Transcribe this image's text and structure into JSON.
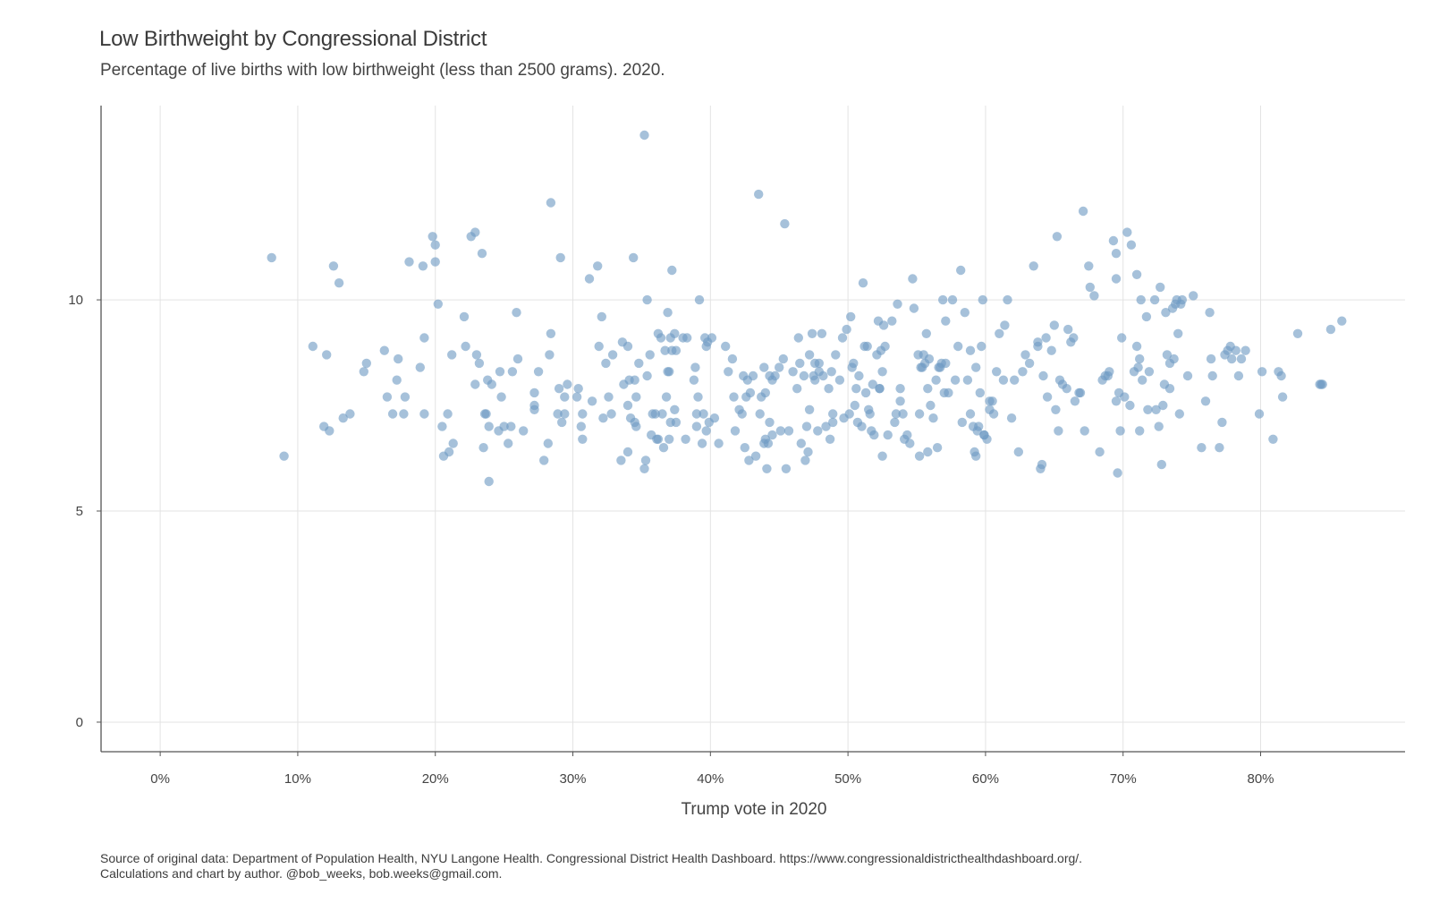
{
  "header": {
    "title": "Low Birthweight by Congressional District",
    "subtitle": "Percentage of live births with low birthweight (less than 2500 grams). 2020."
  },
  "footer": {
    "source_line": "Source of original data: Department of Population Health, NYU Langone Health. Congressional District Health Dashboard. https://www.congressionaldistricthealthdashboard.org/.",
    "credit_line": "Calculations and chart by author. @bob_weeks, bob.weeks@gmail.com."
  },
  "chart_data": {
    "type": "scatter",
    "title": "Low Birthweight by Congressional District",
    "subtitle": "Percentage of live births with low birthweight (less than 2500 grams). 2020.",
    "xlabel": "Trump vote in 2020",
    "ylabel": "",
    "x_ticks": [
      "0%",
      "10%",
      "20%",
      "30%",
      "40%",
      "50%",
      "60%",
      "70%",
      "80%"
    ],
    "x_tick_values": [
      0,
      10,
      20,
      30,
      40,
      50,
      60,
      70,
      80
    ],
    "y_ticks": [
      "0",
      "5",
      "10"
    ],
    "y_tick_values": [
      0,
      5,
      10
    ],
    "xlim": [
      -4.3,
      90.5
    ],
    "ylim": [
      -0.7,
      14.6
    ],
    "grid": true,
    "point_color": "#6f9bc4",
    "points": [
      [
        8.1,
        11.0
      ],
      [
        9.0,
        6.3
      ],
      [
        11.1,
        8.9
      ],
      [
        11.9,
        7.0
      ],
      [
        12.1,
        8.7
      ],
      [
        12.3,
        6.9
      ],
      [
        12.6,
        10.8
      ],
      [
        13.0,
        10.4
      ],
      [
        13.3,
        7.2
      ],
      [
        13.8,
        7.3
      ],
      [
        14.8,
        8.3
      ],
      [
        15.0,
        8.5
      ],
      [
        16.3,
        8.8
      ],
      [
        16.5,
        7.7
      ],
      [
        16.9,
        7.3
      ],
      [
        17.2,
        8.1
      ],
      [
        17.3,
        8.6
      ],
      [
        17.7,
        7.3
      ],
      [
        17.8,
        7.7
      ],
      [
        18.1,
        10.9
      ],
      [
        18.9,
        8.4
      ],
      [
        19.1,
        10.8
      ],
      [
        19.2,
        7.3
      ],
      [
        19.2,
        9.1
      ],
      [
        19.8,
        11.5
      ],
      [
        20.0,
        11.3
      ],
      [
        20.0,
        10.9
      ],
      [
        20.2,
        9.9
      ],
      [
        20.5,
        7.0
      ],
      [
        20.6,
        6.3
      ],
      [
        20.9,
        7.3
      ],
      [
        21.0,
        6.4
      ],
      [
        21.2,
        8.7
      ],
      [
        21.3,
        6.6
      ],
      [
        22.1,
        9.6
      ],
      [
        22.2,
        8.9
      ],
      [
        22.6,
        11.5
      ],
      [
        22.9,
        11.6
      ],
      [
        22.9,
        8.0
      ],
      [
        23.0,
        8.7
      ],
      [
        23.2,
        8.5
      ],
      [
        23.4,
        11.1
      ],
      [
        23.5,
        6.5
      ],
      [
        23.6,
        7.3
      ],
      [
        23.7,
        7.3
      ],
      [
        23.8,
        8.1
      ],
      [
        23.9,
        5.7
      ],
      [
        23.9,
        7.0
      ],
      [
        24.1,
        8.0
      ],
      [
        24.6,
        6.9
      ],
      [
        24.7,
        8.3
      ],
      [
        24.8,
        7.7
      ],
      [
        25.0,
        7.0
      ],
      [
        25.3,
        6.6
      ],
      [
        25.5,
        7.0
      ],
      [
        25.6,
        8.3
      ],
      [
        25.9,
        9.7
      ],
      [
        26.0,
        8.6
      ],
      [
        26.4,
        6.9
      ],
      [
        27.2,
        7.8
      ],
      [
        27.2,
        7.5
      ],
      [
        27.2,
        7.4
      ],
      [
        27.5,
        8.3
      ],
      [
        27.9,
        6.2
      ],
      [
        28.2,
        6.6
      ],
      [
        28.3,
        8.7
      ],
      [
        28.4,
        9.2
      ],
      [
        28.4,
        12.3
      ],
      [
        28.9,
        7.3
      ],
      [
        29.0,
        7.9
      ],
      [
        29.1,
        11.0
      ],
      [
        29.2,
        7.1
      ],
      [
        29.4,
        7.3
      ],
      [
        29.4,
        7.7
      ],
      [
        29.6,
        8.0
      ],
      [
        30.3,
        7.7
      ],
      [
        30.4,
        7.9
      ],
      [
        30.6,
        7.0
      ],
      [
        30.7,
        6.7
      ],
      [
        30.7,
        7.3
      ],
      [
        31.2,
        10.5
      ],
      [
        31.4,
        7.6
      ],
      [
        31.8,
        10.8
      ],
      [
        31.9,
        8.9
      ],
      [
        32.1,
        9.6
      ],
      [
        32.2,
        7.2
      ],
      [
        32.4,
        8.5
      ],
      [
        32.6,
        7.7
      ],
      [
        32.8,
        7.3
      ],
      [
        32.9,
        8.7
      ],
      [
        33.5,
        6.2
      ],
      [
        33.6,
        9.0
      ],
      [
        33.7,
        8.0
      ],
      [
        34.0,
        7.5
      ],
      [
        34.0,
        8.9
      ],
      [
        34.0,
        6.4
      ],
      [
        34.1,
        8.1
      ],
      [
        34.2,
        7.2
      ],
      [
        34.4,
        11.0
      ],
      [
        34.5,
        7.1
      ],
      [
        34.5,
        8.1
      ],
      [
        34.6,
        7.0
      ],
      [
        34.6,
        7.7
      ],
      [
        34.8,
        8.5
      ],
      [
        35.2,
        6.0
      ],
      [
        35.2,
        13.9
      ],
      [
        35.3,
        6.2
      ],
      [
        35.4,
        10.0
      ],
      [
        35.4,
        8.2
      ],
      [
        35.6,
        8.7
      ],
      [
        35.7,
        6.8
      ],
      [
        35.8,
        7.3
      ],
      [
        36.0,
        7.3
      ],
      [
        36.1,
        6.7
      ],
      [
        36.2,
        9.2
      ],
      [
        36.2,
        6.7
      ],
      [
        36.4,
        9.1
      ],
      [
        36.5,
        7.3
      ],
      [
        36.6,
        6.5
      ],
      [
        36.7,
        8.8
      ],
      [
        36.8,
        7.7
      ],
      [
        36.9,
        9.7
      ],
      [
        36.9,
        8.3
      ],
      [
        37.0,
        8.3
      ],
      [
        37.0,
        6.7
      ],
      [
        37.1,
        9.1
      ],
      [
        37.1,
        7.1
      ],
      [
        37.2,
        10.7
      ],
      [
        37.2,
        8.8
      ],
      [
        37.4,
        9.2
      ],
      [
        37.4,
        7.4
      ],
      [
        37.5,
        7.1
      ],
      [
        37.5,
        8.8
      ],
      [
        38.0,
        9.1
      ],
      [
        38.2,
        6.7
      ],
      [
        38.3,
        9.1
      ],
      [
        38.8,
        8.1
      ],
      [
        38.9,
        8.4
      ],
      [
        39.0,
        7.0
      ],
      [
        39.0,
        7.3
      ],
      [
        39.1,
        7.7
      ],
      [
        39.2,
        10.0
      ],
      [
        39.4,
        6.6
      ],
      [
        39.5,
        7.3
      ],
      [
        39.6,
        9.1
      ],
      [
        39.7,
        6.9
      ],
      [
        39.7,
        8.9
      ],
      [
        39.8,
        9.0
      ],
      [
        39.9,
        7.1
      ],
      [
        40.1,
        9.1
      ],
      [
        40.3,
        7.2
      ],
      [
        40.6,
        6.6
      ],
      [
        41.1,
        8.9
      ],
      [
        41.3,
        8.3
      ],
      [
        41.6,
        8.6
      ],
      [
        41.7,
        7.7
      ],
      [
        41.8,
        6.9
      ],
      [
        42.1,
        7.4
      ],
      [
        42.3,
        7.3
      ],
      [
        42.4,
        8.2
      ],
      [
        42.5,
        6.5
      ],
      [
        42.6,
        7.7
      ],
      [
        42.7,
        8.1
      ],
      [
        42.8,
        6.2
      ],
      [
        42.9,
        7.8
      ],
      [
        43.1,
        8.2
      ],
      [
        43.3,
        6.3
      ],
      [
        43.5,
        12.5
      ],
      [
        43.6,
        7.3
      ],
      [
        43.7,
        7.7
      ],
      [
        43.9,
        6.6
      ],
      [
        43.9,
        8.4
      ],
      [
        44.0,
        7.8
      ],
      [
        44.0,
        6.7
      ],
      [
        44.1,
        6.0
      ],
      [
        44.2,
        6.6
      ],
      [
        44.3,
        7.1
      ],
      [
        44.3,
        8.2
      ],
      [
        44.5,
        8.1
      ],
      [
        44.5,
        6.8
      ],
      [
        44.7,
        8.2
      ],
      [
        45.0,
        8.4
      ],
      [
        45.1,
        6.9
      ],
      [
        45.3,
        8.6
      ],
      [
        45.4,
        11.8
      ],
      [
        45.5,
        6.0
      ],
      [
        45.7,
        6.9
      ],
      [
        46.0,
        8.3
      ],
      [
        46.3,
        7.9
      ],
      [
        46.4,
        9.1
      ],
      [
        46.5,
        8.5
      ],
      [
        46.6,
        6.6
      ],
      [
        46.8,
        8.2
      ],
      [
        46.9,
        6.2
      ],
      [
        47.0,
        7.0
      ],
      [
        47.1,
        6.4
      ],
      [
        47.2,
        8.7
      ],
      [
        47.2,
        7.4
      ],
      [
        47.4,
        9.2
      ],
      [
        47.5,
        8.2
      ],
      [
        47.6,
        8.5
      ],
      [
        47.6,
        8.1
      ],
      [
        47.8,
        6.9
      ],
      [
        47.9,
        8.5
      ],
      [
        47.9,
        8.3
      ],
      [
        48.1,
        9.2
      ],
      [
        48.2,
        8.2
      ],
      [
        48.4,
        7.0
      ],
      [
        48.6,
        7.9
      ],
      [
        48.7,
        6.7
      ],
      [
        48.8,
        8.3
      ],
      [
        48.9,
        7.1
      ],
      [
        48.9,
        7.3
      ],
      [
        49.1,
        8.7
      ],
      [
        49.4,
        8.1
      ],
      [
        49.6,
        9.1
      ],
      [
        49.7,
        7.2
      ],
      [
        49.9,
        9.3
      ],
      [
        50.1,
        7.3
      ],
      [
        50.2,
        9.6
      ],
      [
        50.3,
        8.4
      ],
      [
        50.4,
        8.5
      ],
      [
        50.5,
        7.5
      ],
      [
        50.6,
        7.9
      ],
      [
        50.7,
        7.1
      ],
      [
        50.8,
        8.2
      ],
      [
        51.0,
        7.0
      ],
      [
        51.1,
        10.4
      ],
      [
        51.2,
        8.9
      ],
      [
        51.3,
        7.8
      ],
      [
        51.4,
        8.9
      ],
      [
        51.5,
        7.4
      ],
      [
        51.6,
        7.3
      ],
      [
        51.7,
        6.9
      ],
      [
        51.8,
        8.0
      ],
      [
        51.9,
        6.8
      ],
      [
        52.1,
        8.7
      ],
      [
        52.2,
        9.5
      ],
      [
        52.3,
        7.9
      ],
      [
        52.3,
        7.9
      ],
      [
        52.4,
        8.8
      ],
      [
        52.5,
        6.3
      ],
      [
        52.5,
        8.3
      ],
      [
        52.6,
        9.4
      ],
      [
        52.7,
        8.9
      ],
      [
        52.9,
        6.8
      ],
      [
        53.2,
        9.5
      ],
      [
        53.4,
        7.1
      ],
      [
        53.5,
        7.3
      ],
      [
        53.6,
        9.9
      ],
      [
        53.8,
        7.6
      ],
      [
        53.8,
        7.9
      ],
      [
        54.0,
        7.3
      ],
      [
        54.1,
        6.7
      ],
      [
        54.3,
        6.8
      ],
      [
        54.5,
        6.6
      ],
      [
        54.7,
        10.5
      ],
      [
        54.8,
        9.8
      ],
      [
        55.1,
        8.7
      ],
      [
        55.2,
        7.3
      ],
      [
        55.2,
        6.3
      ],
      [
        55.3,
        8.4
      ],
      [
        55.4,
        8.4
      ],
      [
        55.5,
        8.7
      ],
      [
        55.6,
        8.5
      ],
      [
        55.7,
        9.2
      ],
      [
        55.8,
        7.9
      ],
      [
        55.8,
        6.4
      ],
      [
        55.9,
        8.6
      ],
      [
        56.0,
        7.5
      ],
      [
        56.2,
        7.2
      ],
      [
        56.4,
        8.1
      ],
      [
        56.5,
        6.5
      ],
      [
        56.6,
        8.4
      ],
      [
        56.7,
        8.4
      ],
      [
        56.8,
        8.5
      ],
      [
        56.9,
        10.0
      ],
      [
        57.0,
        7.8
      ],
      [
        57.1,
        8.5
      ],
      [
        57.3,
        7.8
      ],
      [
        57.6,
        10.0
      ],
      [
        57.8,
        8.1
      ],
      [
        58.0,
        8.9
      ],
      [
        58.2,
        10.7
      ],
      [
        58.3,
        7.1
      ],
      [
        58.5,
        9.7
      ],
      [
        58.7,
        8.1
      ],
      [
        58.9,
        7.3
      ],
      [
        59.1,
        7.0
      ],
      [
        59.2,
        6.4
      ],
      [
        59.3,
        8.4
      ],
      [
        59.3,
        6.3
      ],
      [
        59.4,
        6.9
      ],
      [
        59.5,
        7.0
      ],
      [
        59.6,
        7.8
      ],
      [
        59.7,
        8.9
      ],
      [
        59.9,
        6.8
      ],
      [
        59.9,
        6.8
      ],
      [
        60.1,
        6.7
      ],
      [
        60.3,
        7.6
      ],
      [
        60.3,
        7.4
      ],
      [
        60.5,
        7.6
      ],
      [
        60.6,
        7.3
      ],
      [
        61.0,
        9.2
      ],
      [
        61.3,
        8.1
      ],
      [
        61.6,
        10.0
      ],
      [
        61.9,
        7.2
      ],
      [
        62.1,
        8.1
      ],
      [
        62.4,
        6.4
      ],
      [
        62.7,
        8.3
      ],
      [
        62.9,
        8.7
      ],
      [
        63.2,
        8.5
      ],
      [
        63.5,
        10.8
      ],
      [
        63.8,
        8.9
      ],
      [
        64.0,
        6.0
      ],
      [
        64.1,
        6.1
      ],
      [
        64.2,
        8.2
      ],
      [
        64.4,
        9.1
      ],
      [
        64.5,
        7.7
      ],
      [
        64.8,
        8.8
      ],
      [
        65.0,
        9.4
      ],
      [
        65.1,
        7.4
      ],
      [
        65.2,
        11.5
      ],
      [
        65.3,
        6.9
      ],
      [
        65.4,
        8.1
      ],
      [
        65.6,
        8.0
      ],
      [
        65.9,
        7.9
      ],
      [
        66.0,
        9.3
      ],
      [
        66.2,
        9.0
      ],
      [
        66.4,
        9.1
      ],
      [
        66.5,
        7.6
      ],
      [
        66.8,
        7.8
      ],
      [
        66.9,
        7.8
      ],
      [
        67.1,
        12.1
      ],
      [
        67.2,
        6.9
      ],
      [
        67.5,
        10.8
      ],
      [
        67.6,
        10.3
      ],
      [
        67.9,
        10.1
      ],
      [
        68.3,
        6.4
      ],
      [
        68.5,
        8.1
      ],
      [
        68.7,
        8.2
      ],
      [
        68.9,
        8.2
      ],
      [
        69.0,
        8.3
      ],
      [
        69.3,
        11.4
      ],
      [
        69.5,
        10.5
      ],
      [
        69.5,
        7.6
      ],
      [
        69.5,
        11.1
      ],
      [
        69.6,
        5.9
      ],
      [
        69.7,
        7.8
      ],
      [
        69.8,
        6.9
      ],
      [
        69.9,
        9.1
      ],
      [
        70.1,
        7.7
      ],
      [
        70.3,
        11.6
      ],
      [
        70.5,
        7.5
      ],
      [
        70.6,
        11.3
      ],
      [
        70.8,
        8.3
      ],
      [
        71.0,
        10.6
      ],
      [
        71.0,
        8.9
      ],
      [
        71.1,
        8.4
      ],
      [
        71.2,
        8.6
      ],
      [
        71.2,
        6.9
      ],
      [
        71.3,
        10.0
      ],
      [
        71.4,
        8.1
      ],
      [
        71.7,
        9.6
      ],
      [
        71.8,
        7.4
      ],
      [
        71.9,
        8.3
      ],
      [
        72.3,
        10.0
      ],
      [
        72.4,
        7.4
      ],
      [
        72.6,
        7.0
      ],
      [
        72.7,
        10.3
      ],
      [
        72.8,
        6.1
      ],
      [
        72.9,
        7.5
      ],
      [
        73.0,
        8.0
      ],
      [
        73.1,
        9.7
      ],
      [
        73.2,
        8.7
      ],
      [
        73.4,
        8.5
      ],
      [
        73.4,
        7.9
      ],
      [
        73.6,
        9.8
      ],
      [
        73.7,
        8.6
      ],
      [
        73.8,
        9.9
      ],
      [
        73.9,
        10.0
      ],
      [
        74.0,
        9.2
      ],
      [
        74.1,
        7.3
      ],
      [
        74.2,
        9.9
      ],
      [
        74.3,
        10.0
      ],
      [
        74.7,
        8.2
      ],
      [
        75.1,
        10.1
      ],
      [
        75.7,
        6.5
      ],
      [
        76.0,
        7.6
      ],
      [
        76.3,
        9.7
      ],
      [
        76.4,
        8.6
      ],
      [
        76.5,
        8.2
      ],
      [
        77.0,
        6.5
      ],
      [
        77.2,
        7.1
      ],
      [
        77.4,
        8.7
      ],
      [
        77.6,
        8.8
      ],
      [
        77.8,
        8.9
      ],
      [
        77.9,
        8.6
      ],
      [
        78.2,
        8.8
      ],
      [
        78.4,
        8.2
      ],
      [
        78.6,
        8.6
      ],
      [
        78.9,
        8.8
      ],
      [
        79.9,
        7.3
      ],
      [
        80.1,
        8.3
      ],
      [
        80.9,
        6.7
      ],
      [
        81.3,
        8.3
      ],
      [
        81.5,
        8.2
      ],
      [
        81.6,
        7.7
      ],
      [
        82.7,
        9.2
      ],
      [
        84.3,
        8.0
      ],
      [
        84.4,
        8.0
      ],
      [
        84.5,
        8.0
      ],
      [
        85.1,
        9.3
      ],
      [
        85.9,
        9.5
      ],
      [
        59.8,
        10.0
      ],
      [
        61.4,
        9.4
      ],
      [
        63.8,
        9.0
      ],
      [
        57.1,
        9.5
      ],
      [
        58.9,
        8.8
      ],
      [
        60.8,
        8.3
      ]
    ]
  }
}
